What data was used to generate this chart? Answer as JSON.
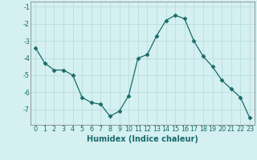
{
  "x": [
    0,
    1,
    2,
    3,
    4,
    5,
    6,
    7,
    8,
    9,
    10,
    11,
    12,
    13,
    14,
    15,
    16,
    17,
    18,
    19,
    20,
    21,
    22,
    23
  ],
  "y": [
    -3.4,
    -4.3,
    -4.7,
    -4.7,
    -5.0,
    -6.3,
    -6.6,
    -6.7,
    -7.4,
    -7.1,
    -6.2,
    -4.0,
    -3.8,
    -2.7,
    -1.8,
    -1.5,
    -1.7,
    -3.0,
    -3.9,
    -4.5,
    -5.3,
    -5.8,
    -6.3,
    -7.5
  ],
  "xlabel": "Humidex (Indice chaleur)",
  "ylim": [
    -7.9,
    -0.7
  ],
  "xlim": [
    -0.5,
    23.5
  ],
  "yticks": [
    -7,
    -6,
    -5,
    -4,
    -3,
    -2,
    -1
  ],
  "xticks": [
    0,
    1,
    2,
    3,
    4,
    5,
    6,
    7,
    8,
    9,
    10,
    11,
    12,
    13,
    14,
    15,
    16,
    17,
    18,
    19,
    20,
    21,
    22,
    23
  ],
  "line_color": "#1a6b6b",
  "marker": "D",
  "marker_size": 2.5,
  "bg_color": "#d4f0f0",
  "grid_color": "#b8d8d8",
  "axis_color": "#888888",
  "xlabel_fontsize": 7.0,
  "tick_fontsize": 5.8
}
